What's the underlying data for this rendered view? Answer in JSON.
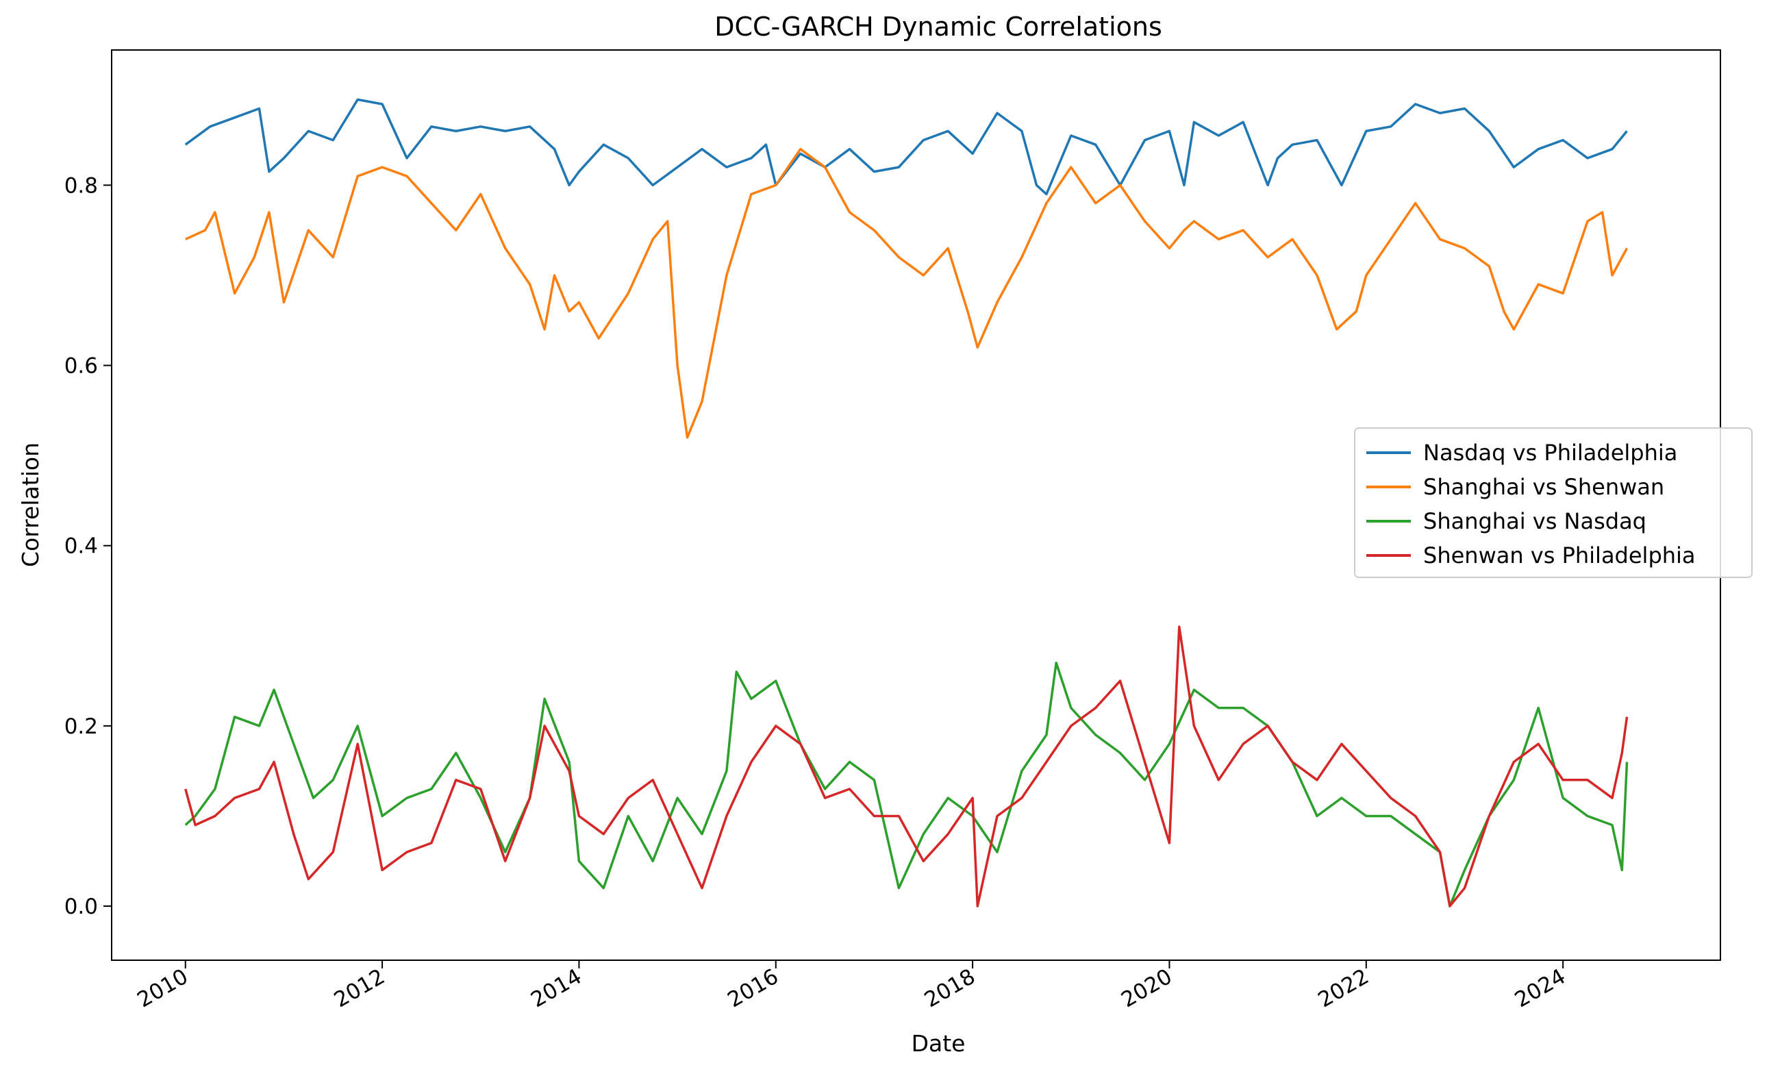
{
  "chart_data": {
    "type": "line",
    "title": "DCC-GARCH Dynamic Correlations",
    "xlabel": "Date",
    "ylabel": "Correlation",
    "xlim": [
      2009.25,
      2025.6
    ],
    "ylim": [
      -0.06,
      0.95
    ],
    "xticks": [
      2010,
      2012,
      2014,
      2016,
      2018,
      2020,
      2022,
      2024
    ],
    "xtick_labels": [
      "2010",
      "2012",
      "2014",
      "2016",
      "2018",
      "2020",
      "2022",
      "2024"
    ],
    "yticks": [
      0.0,
      0.2,
      0.4,
      0.6,
      0.8
    ],
    "ytick_labels": [
      "0.0",
      "0.2",
      "0.4",
      "0.6",
      "0.8"
    ],
    "grid": false,
    "legend_position": "center-right",
    "series": [
      {
        "name": "Nasdaq vs Philadelphia",
        "color": "#1f77b4",
        "x": [
          2010.0,
          2010.25,
          2010.5,
          2010.75,
          2010.85,
          2011.0,
          2011.25,
          2011.5,
          2011.75,
          2012.0,
          2012.25,
          2012.5,
          2012.75,
          2013.0,
          2013.25,
          2013.5,
          2013.75,
          2013.9,
          2014.0,
          2014.25,
          2014.5,
          2014.75,
          2015.0,
          2015.25,
          2015.5,
          2015.75,
          2015.9,
          2016.0,
          2016.25,
          2016.5,
          2016.75,
          2017.0,
          2017.25,
          2017.5,
          2017.75,
          2018.0,
          2018.25,
          2018.5,
          2018.65,
          2018.75,
          2019.0,
          2019.25,
          2019.5,
          2019.75,
          2020.0,
          2020.15,
          2020.25,
          2020.5,
          2020.75,
          2021.0,
          2021.1,
          2021.25,
          2021.5,
          2021.75,
          2022.0,
          2022.25,
          2022.5,
          2022.75,
          2023.0,
          2023.25,
          2023.5,
          2023.75,
          2024.0,
          2024.25,
          2024.5,
          2024.65
        ],
        "values": [
          0.845,
          0.865,
          0.875,
          0.885,
          0.815,
          0.83,
          0.86,
          0.85,
          0.895,
          0.89,
          0.83,
          0.865,
          0.86,
          0.865,
          0.86,
          0.865,
          0.84,
          0.8,
          0.815,
          0.845,
          0.83,
          0.8,
          0.82,
          0.84,
          0.82,
          0.83,
          0.845,
          0.8,
          0.835,
          0.82,
          0.84,
          0.815,
          0.82,
          0.85,
          0.86,
          0.835,
          0.88,
          0.86,
          0.8,
          0.79,
          0.855,
          0.845,
          0.8,
          0.85,
          0.86,
          0.8,
          0.87,
          0.855,
          0.87,
          0.8,
          0.83,
          0.845,
          0.85,
          0.8,
          0.86,
          0.865,
          0.89,
          0.88,
          0.885,
          0.86,
          0.82,
          0.84,
          0.85,
          0.83,
          0.84,
          0.86
        ]
      },
      {
        "name": "Shanghai vs Shenwan",
        "color": "#ff7f0e",
        "x": [
          2010.0,
          2010.2,
          2010.3,
          2010.5,
          2010.7,
          2010.85,
          2011.0,
          2011.25,
          2011.5,
          2011.75,
          2012.0,
          2012.25,
          2012.5,
          2012.75,
          2013.0,
          2013.25,
          2013.5,
          2013.65,
          2013.75,
          2013.9,
          2014.0,
          2014.2,
          2014.5,
          2014.75,
          2014.9,
          2015.0,
          2015.1,
          2015.25,
          2015.5,
          2015.75,
          2016.0,
          2016.25,
          2016.5,
          2016.75,
          2017.0,
          2017.25,
          2017.5,
          2017.75,
          2017.95,
          2018.05,
          2018.25,
          2018.5,
          2018.75,
          2019.0,
          2019.25,
          2019.5,
          2019.75,
          2020.0,
          2020.15,
          2020.25,
          2020.5,
          2020.75,
          2021.0,
          2021.25,
          2021.5,
          2021.7,
          2021.9,
          2022.0,
          2022.25,
          2022.5,
          2022.75,
          2023.0,
          2023.25,
          2023.4,
          2023.5,
          2023.75,
          2024.0,
          2024.25,
          2024.4,
          2024.5,
          2024.65
        ],
        "values": [
          0.74,
          0.75,
          0.77,
          0.68,
          0.72,
          0.77,
          0.67,
          0.75,
          0.72,
          0.81,
          0.82,
          0.81,
          0.78,
          0.75,
          0.79,
          0.73,
          0.69,
          0.64,
          0.7,
          0.66,
          0.67,
          0.63,
          0.68,
          0.74,
          0.76,
          0.6,
          0.52,
          0.56,
          0.7,
          0.79,
          0.8,
          0.84,
          0.82,
          0.77,
          0.75,
          0.72,
          0.7,
          0.73,
          0.66,
          0.62,
          0.67,
          0.72,
          0.78,
          0.82,
          0.78,
          0.8,
          0.76,
          0.73,
          0.75,
          0.76,
          0.74,
          0.75,
          0.72,
          0.74,
          0.7,
          0.64,
          0.66,
          0.7,
          0.74,
          0.78,
          0.74,
          0.73,
          0.71,
          0.66,
          0.64,
          0.69,
          0.68,
          0.76,
          0.77,
          0.7,
          0.73
        ]
      },
      {
        "name": "Shanghai vs Nasdaq",
        "color": "#2ca02c",
        "x": [
          2010.0,
          2010.1,
          2010.3,
          2010.5,
          2010.75,
          2010.9,
          2011.1,
          2011.3,
          2011.5,
          2011.75,
          2012.0,
          2012.25,
          2012.5,
          2012.75,
          2013.0,
          2013.25,
          2013.5,
          2013.65,
          2013.9,
          2014.0,
          2014.25,
          2014.5,
          2014.75,
          2015.0,
          2015.25,
          2015.5,
          2015.6,
          2015.75,
          2016.0,
          2016.25,
          2016.5,
          2016.75,
          2017.0,
          2017.25,
          2017.5,
          2017.75,
          2018.0,
          2018.25,
          2018.5,
          2018.75,
          2018.85,
          2019.0,
          2019.25,
          2019.5,
          2019.75,
          2020.0,
          2020.25,
          2020.5,
          2020.75,
          2021.0,
          2021.25,
          2021.5,
          2021.75,
          2022.0,
          2022.25,
          2022.5,
          2022.75,
          2022.85,
          2023.0,
          2023.25,
          2023.5,
          2023.75,
          2024.0,
          2024.25,
          2024.5,
          2024.6,
          2024.65
        ],
        "values": [
          0.09,
          0.1,
          0.13,
          0.21,
          0.2,
          0.24,
          0.18,
          0.12,
          0.14,
          0.2,
          0.1,
          0.12,
          0.13,
          0.17,
          0.12,
          0.06,
          0.12,
          0.23,
          0.16,
          0.05,
          0.02,
          0.1,
          0.05,
          0.12,
          0.08,
          0.15,
          0.26,
          0.23,
          0.25,
          0.18,
          0.13,
          0.16,
          0.14,
          0.02,
          0.08,
          0.12,
          0.1,
          0.06,
          0.15,
          0.19,
          0.27,
          0.22,
          0.19,
          0.17,
          0.14,
          0.18,
          0.24,
          0.22,
          0.22,
          0.2,
          0.16,
          0.1,
          0.12,
          0.1,
          0.1,
          0.08,
          0.06,
          0.0,
          0.04,
          0.1,
          0.14,
          0.22,
          0.12,
          0.1,
          0.09,
          0.04,
          0.16
        ]
      },
      {
        "name": "Shenwan vs Philadelphia",
        "color": "#d62728",
        "x": [
          2010.0,
          2010.1,
          2010.3,
          2010.5,
          2010.75,
          2010.9,
          2011.1,
          2011.25,
          2011.5,
          2011.75,
          2012.0,
          2012.25,
          2012.5,
          2012.75,
          2013.0,
          2013.25,
          2013.5,
          2013.65,
          2013.9,
          2014.0,
          2014.25,
          2014.5,
          2014.75,
          2015.0,
          2015.25,
          2015.5,
          2015.75,
          2016.0,
          2016.25,
          2016.5,
          2016.75,
          2017.0,
          2017.25,
          2017.5,
          2017.75,
          2018.0,
          2018.05,
          2018.25,
          2018.5,
          2018.75,
          2019.0,
          2019.25,
          2019.5,
          2019.75,
          2020.0,
          2020.1,
          2020.25,
          2020.5,
          2020.75,
          2021.0,
          2021.25,
          2021.5,
          2021.75,
          2022.0,
          2022.25,
          2022.5,
          2022.75,
          2022.85,
          2023.0,
          2023.25,
          2023.5,
          2023.75,
          2024.0,
          2024.25,
          2024.5,
          2024.6,
          2024.65
        ],
        "values": [
          0.13,
          0.09,
          0.1,
          0.12,
          0.13,
          0.16,
          0.08,
          0.03,
          0.06,
          0.18,
          0.04,
          0.06,
          0.07,
          0.14,
          0.13,
          0.05,
          0.12,
          0.2,
          0.15,
          0.1,
          0.08,
          0.12,
          0.14,
          0.08,
          0.02,
          0.1,
          0.16,
          0.2,
          0.18,
          0.12,
          0.13,
          0.1,
          0.1,
          0.05,
          0.08,
          0.12,
          0.0,
          0.1,
          0.12,
          0.16,
          0.2,
          0.22,
          0.25,
          0.16,
          0.07,
          0.31,
          0.2,
          0.14,
          0.18,
          0.2,
          0.16,
          0.14,
          0.18,
          0.15,
          0.12,
          0.1,
          0.06,
          0.0,
          0.02,
          0.1,
          0.16,
          0.18,
          0.14,
          0.14,
          0.12,
          0.17,
          0.21
        ]
      }
    ]
  }
}
